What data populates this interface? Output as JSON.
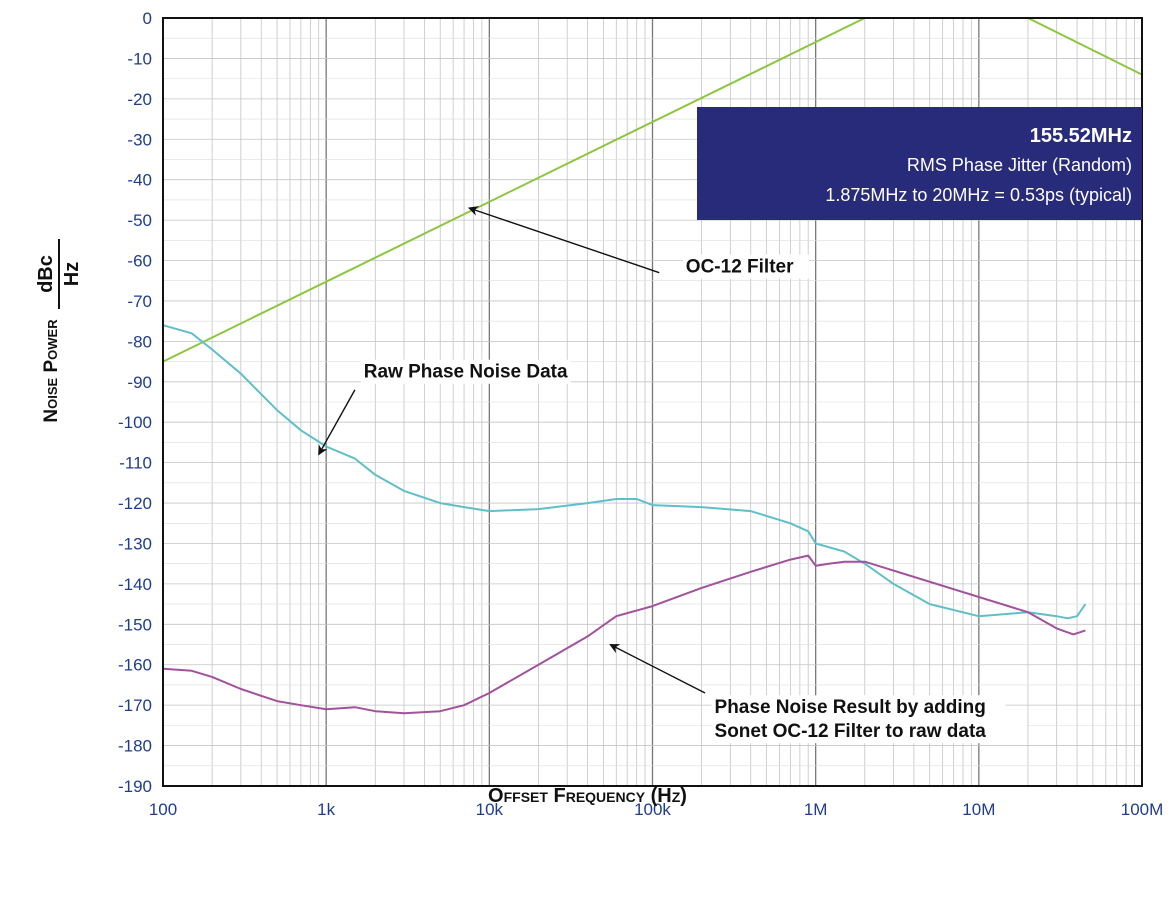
{
  "chart_data": {
    "type": "line",
    "x_scale": "log",
    "xlim": [
      100,
      100000000
    ],
    "ylim": [
      -190,
      0
    ],
    "grid": true,
    "x_ticks": [
      {
        "value": 100,
        "label": "100"
      },
      {
        "value": 1000,
        "label": "1k"
      },
      {
        "value": 10000,
        "label": "10k"
      },
      {
        "value": 100000,
        "label": "100k"
      },
      {
        "value": 1000000,
        "label": "1M"
      },
      {
        "value": 10000000,
        "label": "10M"
      },
      {
        "value": 100000000,
        "label": "100M"
      }
    ],
    "y_ticks": [
      0,
      -10,
      -20,
      -30,
      -40,
      -50,
      -60,
      -70,
      -80,
      -90,
      -100,
      -110,
      -120,
      -130,
      -140,
      -150,
      -160,
      -170,
      -180,
      -190
    ],
    "xlabel": "Offset Frequency (Hz)",
    "ylabel": "Noise Power",
    "yunit_numerator": "dBc",
    "yunit_denominator": "Hz",
    "series": [
      {
        "color": "#8cc63f",
        "points": [
          [
            100,
            -85
          ],
          [
            2000000,
            0
          ],
          [
            20000000,
            0
          ],
          [
            100000000,
            -14
          ]
        ]
      },
      {
        "color": "#5fbfc9",
        "points": [
          [
            100,
            -76
          ],
          [
            150,
            -78
          ],
          [
            200,
            -82
          ],
          [
            300,
            -88
          ],
          [
            500,
            -97
          ],
          [
            700,
            -102
          ],
          [
            1000,
            -106
          ],
          [
            1500,
            -109
          ],
          [
            2000,
            -113
          ],
          [
            3000,
            -117
          ],
          [
            5000,
            -120
          ],
          [
            7000,
            -121
          ],
          [
            10000,
            -122
          ],
          [
            20000,
            -121.5
          ],
          [
            40000,
            -120
          ],
          [
            60000,
            -119
          ],
          [
            80000,
            -119
          ],
          [
            100000,
            -120.5
          ],
          [
            200000,
            -121
          ],
          [
            400000,
            -122
          ],
          [
            700000,
            -125
          ],
          [
            900000,
            -127
          ],
          [
            1000000,
            -130
          ],
          [
            1500000,
            -132
          ],
          [
            2000000,
            -135
          ],
          [
            3000000,
            -140
          ],
          [
            5000000,
            -145
          ],
          [
            10000000,
            -148
          ],
          [
            20000000,
            -147
          ],
          [
            30000000,
            -148
          ],
          [
            35000000,
            -148.5
          ],
          [
            40000000,
            -148
          ],
          [
            45000000,
            -145
          ]
        ]
      },
      {
        "color": "#a1529b",
        "points": [
          [
            100,
            -161
          ],
          [
            150,
            -161.5
          ],
          [
            200,
            -163
          ],
          [
            300,
            -166
          ],
          [
            500,
            -169
          ],
          [
            700,
            -170
          ],
          [
            1000,
            -171
          ],
          [
            1500,
            -170.5
          ],
          [
            2000,
            -171.5
          ],
          [
            3000,
            -172
          ],
          [
            5000,
            -171.5
          ],
          [
            7000,
            -170
          ],
          [
            10000,
            -167
          ],
          [
            20000,
            -160
          ],
          [
            40000,
            -153
          ],
          [
            60000,
            -148
          ],
          [
            100000,
            -145.5
          ],
          [
            200000,
            -141
          ],
          [
            400000,
            -137
          ],
          [
            700000,
            -134
          ],
          [
            900000,
            -133
          ],
          [
            1000000,
            -135.5
          ],
          [
            1200000,
            -135
          ],
          [
            1500000,
            -134.5
          ],
          [
            2000000,
            -134.5
          ],
          [
            20000000,
            -147
          ],
          [
            30000000,
            -151
          ],
          [
            38000000,
            -152.5
          ],
          [
            45000000,
            -151.5
          ]
        ]
      }
    ],
    "annotations": [
      {
        "lines": [
          "OC-12 Filter"
        ],
        "text_anchor": [
          160000,
          -63
        ],
        "arrow_from": [
          110000,
          -63
        ],
        "arrow_to": [
          7500,
          -47
        ]
      },
      {
        "lines": [
          "Raw Phase Noise Data"
        ],
        "text_anchor": [
          1700,
          -89
        ],
        "arrow_from": [
          1500,
          -92
        ],
        "arrow_to": [
          900,
          -108
        ]
      },
      {
        "lines": [
          "Phase Noise Result by adding",
          "Sonet OC-12 Filter to raw data"
        ],
        "text_anchor": [
          240000,
          -172
        ],
        "arrow_from": [
          210000,
          -167
        ],
        "arrow_to": [
          55000,
          -155
        ]
      }
    ],
    "info_box": {
      "title": "155.52MHz",
      "lines": [
        "RMS Phase Jitter  (Random)",
        "1.875MHz to 20MHz = 0.53ps (typical)"
      ],
      "background": "#282a7a"
    },
    "axis_text_color": "#1f3d8f"
  }
}
